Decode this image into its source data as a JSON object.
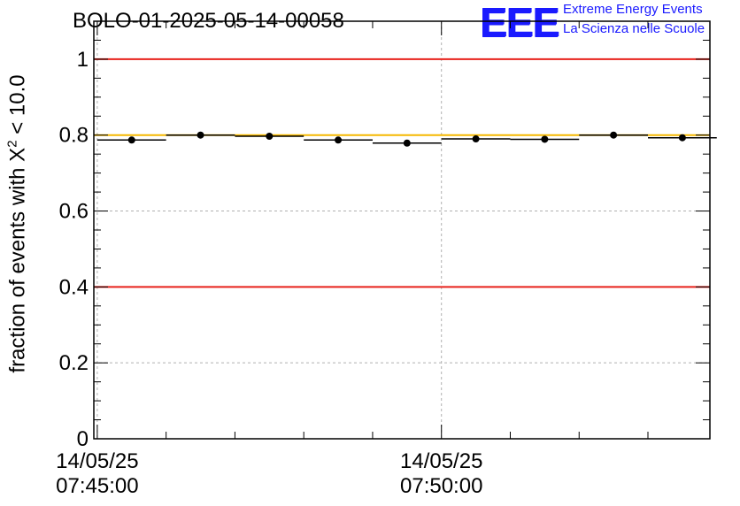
{
  "chart_data": {
    "type": "scatter",
    "title": "BOLO-01-2025-05-14-00058",
    "ylabel_prefix": "fraction of events with X",
    "ylabel_sup": "2",
    "ylabel_suffix": " < 10.0",
    "ylim": [
      0,
      1.1
    ],
    "xlim_minutes": [
      -0.05,
      8.9
    ],
    "yticks": [
      "0",
      "0.2",
      "0.4",
      "0.6",
      "0.8",
      "1"
    ],
    "xtick_labels": [
      {
        "minute": 0,
        "date": "14/05/25",
        "time": "07:45:00"
      },
      {
        "minute": 5,
        "date": "14/05/25",
        "time": "07:50:00"
      }
    ],
    "grid": true,
    "points": [
      {
        "x": 0.5,
        "y": 0.787
      },
      {
        "x": 1.5,
        "y": 0.8
      },
      {
        "x": 2.5,
        "y": 0.797
      },
      {
        "x": 3.5,
        "y": 0.787
      },
      {
        "x": 4.5,
        "y": 0.779
      },
      {
        "x": 5.5,
        "y": 0.79
      },
      {
        "x": 6.5,
        "y": 0.789
      },
      {
        "x": 7.5,
        "y": 0.8
      },
      {
        "x": 8.5,
        "y": 0.793
      }
    ],
    "bin_half_width_minutes": 0.5,
    "reference_lines": [
      {
        "y": 1.0,
        "color": "#e8221b"
      },
      {
        "y": 0.4,
        "color": "#e8221b"
      },
      {
        "y": 0.8,
        "color": "#f5b800"
      }
    ]
  },
  "logo": {
    "mark": "EEE",
    "line1": "Extreme Energy Events",
    "line2": "La Scienza nelle Scuole",
    "color": "#1a1aff"
  }
}
